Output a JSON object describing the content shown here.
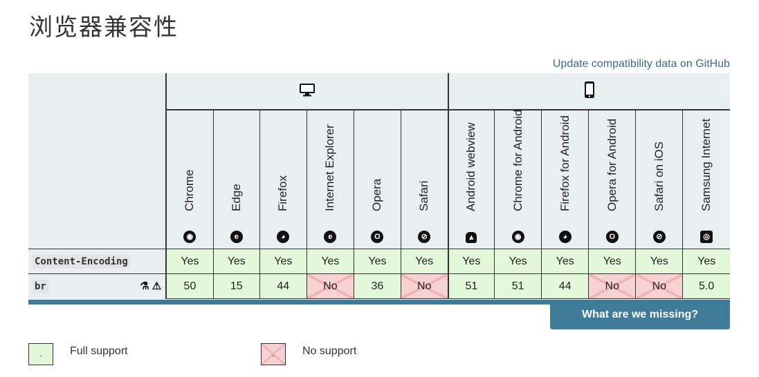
{
  "page": {
    "title": "浏览器兼容性",
    "github_link": "Update compatibility data on GitHub"
  },
  "platforms": {
    "desktop_icon": "desktop-icon",
    "mobile_icon": "mobile-icon"
  },
  "browsers": [
    {
      "name": "Chrome",
      "icon": "chrome-icon",
      "glyph": "◉"
    },
    {
      "name": "Edge",
      "icon": "edge-icon",
      "glyph": "e"
    },
    {
      "name": "Firefox",
      "icon": "firefox-icon",
      "glyph": "◕"
    },
    {
      "name": "Internet Explorer",
      "icon": "ie-icon",
      "glyph": "e"
    },
    {
      "name": "Opera",
      "icon": "opera-icon",
      "glyph": "O"
    },
    {
      "name": "Safari",
      "icon": "safari-icon",
      "glyph": "⊘"
    },
    {
      "name": "Android webview",
      "icon": "android-icon",
      "glyph": "▲"
    },
    {
      "name": "Chrome for Android",
      "icon": "chrome-icon",
      "glyph": "◉"
    },
    {
      "name": "Firefox for Android",
      "icon": "firefox-icon",
      "glyph": "◕"
    },
    {
      "name": "Opera for Android",
      "icon": "opera-icon",
      "glyph": "O"
    },
    {
      "name": "Safari on iOS",
      "icon": "safari-icon",
      "glyph": "⊘"
    },
    {
      "name": "Samsung Internet",
      "icon": "samsung-icon",
      "glyph": "◎"
    }
  ],
  "rows": [
    {
      "feature": "Content-Encoding",
      "cells": [
        {
          "text": "Yes",
          "support": "yes"
        },
        {
          "text": "Yes",
          "support": "yes"
        },
        {
          "text": "Yes",
          "support": "yes"
        },
        {
          "text": "Yes",
          "support": "yes"
        },
        {
          "text": "Yes",
          "support": "yes"
        },
        {
          "text": "Yes",
          "support": "yes"
        },
        {
          "text": "Yes",
          "support": "yes"
        },
        {
          "text": "Yes",
          "support": "yes"
        },
        {
          "text": "Yes",
          "support": "yes"
        },
        {
          "text": "Yes",
          "support": "yes"
        },
        {
          "text": "Yes",
          "support": "yes"
        },
        {
          "text": "Yes",
          "support": "yes"
        }
      ]
    },
    {
      "feature": "br",
      "feature_icons": [
        "experimental-icon",
        "warning-icon"
      ],
      "cells": [
        {
          "text": "50",
          "support": "yes"
        },
        {
          "text": "15",
          "support": "yes"
        },
        {
          "text": "44",
          "support": "yes"
        },
        {
          "text": "No",
          "support": "no"
        },
        {
          "text": "36",
          "support": "yes"
        },
        {
          "text": "No",
          "support": "no"
        },
        {
          "text": "51",
          "support": "yes"
        },
        {
          "text": "51",
          "support": "yes"
        },
        {
          "text": "44",
          "support": "yes"
        },
        {
          "text": "No",
          "support": "no"
        },
        {
          "text": "No",
          "support": "no"
        },
        {
          "text": "5.0",
          "support": "yes"
        }
      ]
    }
  ],
  "missing_button": "What are we missing?",
  "legend": [
    {
      "label": "Full support",
      "support": "yes",
      "box_text": "-"
    },
    {
      "label": "No support",
      "support": "no",
      "box_text": "-"
    }
  ],
  "colors": {
    "yes": "#e3f8d9",
    "no": "#f7d2d2",
    "header_bg": "#e9eef0",
    "accent": "#3e7b98",
    "link": "#3a6b89"
  }
}
